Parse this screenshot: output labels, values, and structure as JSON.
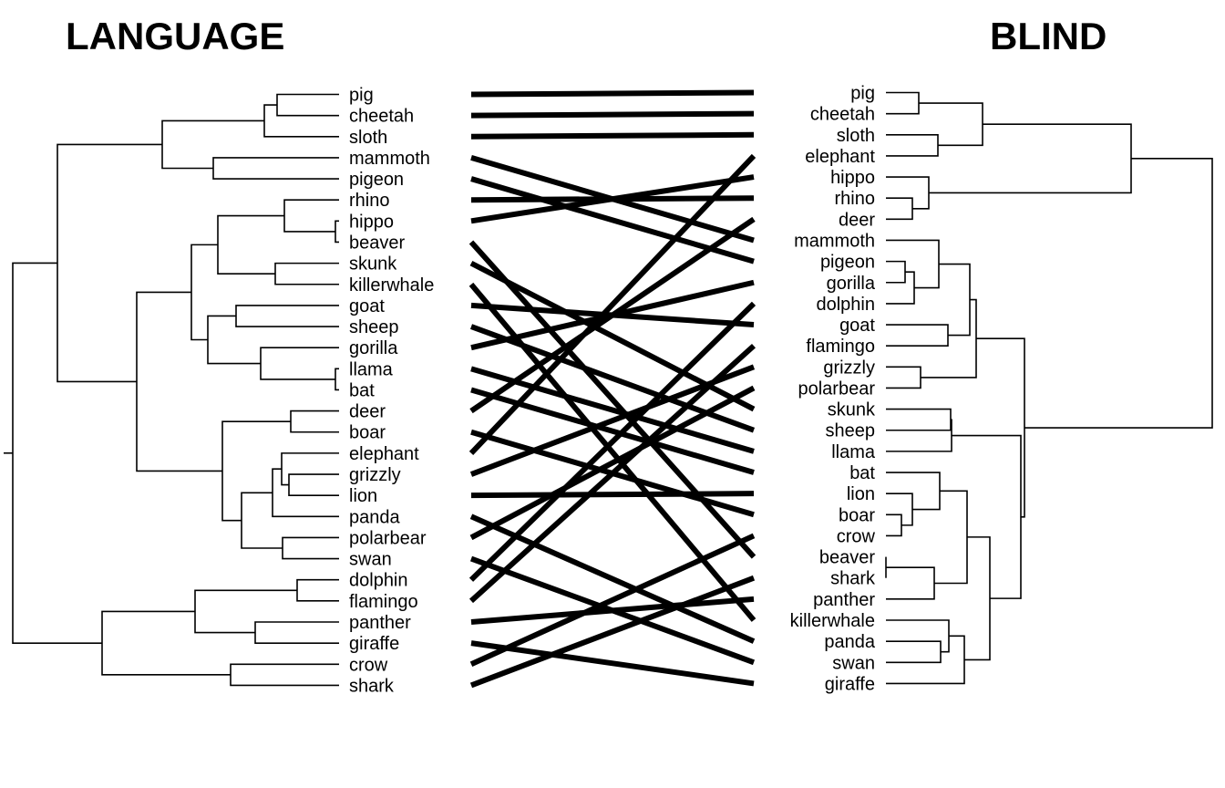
{
  "titles": {
    "left": "LANGUAGE",
    "right": "BLIND"
  },
  "left_leaves": [
    "pig",
    "cheetah",
    "sloth",
    "mammoth",
    "pigeon",
    "rhino",
    "hippo",
    "beaver",
    "skunk",
    "killerwhale",
    "goat",
    "sheep",
    "gorilla",
    "llama",
    "bat",
    "deer",
    "boar",
    "elephant",
    "grizzly",
    "lion",
    "panda",
    "polarbear",
    "swan",
    "dolphin",
    "flamingo",
    "panther",
    "giraffe",
    "crow",
    "shark"
  ],
  "right_leaves": [
    "pig",
    "cheetah",
    "sloth",
    "elephant",
    "hippo",
    "rhino",
    "deer",
    "mammoth",
    "pigeon",
    "gorilla",
    "dolphin",
    "goat",
    "flamingo",
    "grizzly",
    "polarbear",
    "skunk",
    "sheep",
    "llama",
    "bat",
    "lion",
    "boar",
    "crow",
    "beaver",
    "shark",
    "panther",
    "killerwhale",
    "panda",
    "swan",
    "giraffe"
  ],
  "colors": {
    "ink": "#000000",
    "background": "#ffffff"
  }
}
